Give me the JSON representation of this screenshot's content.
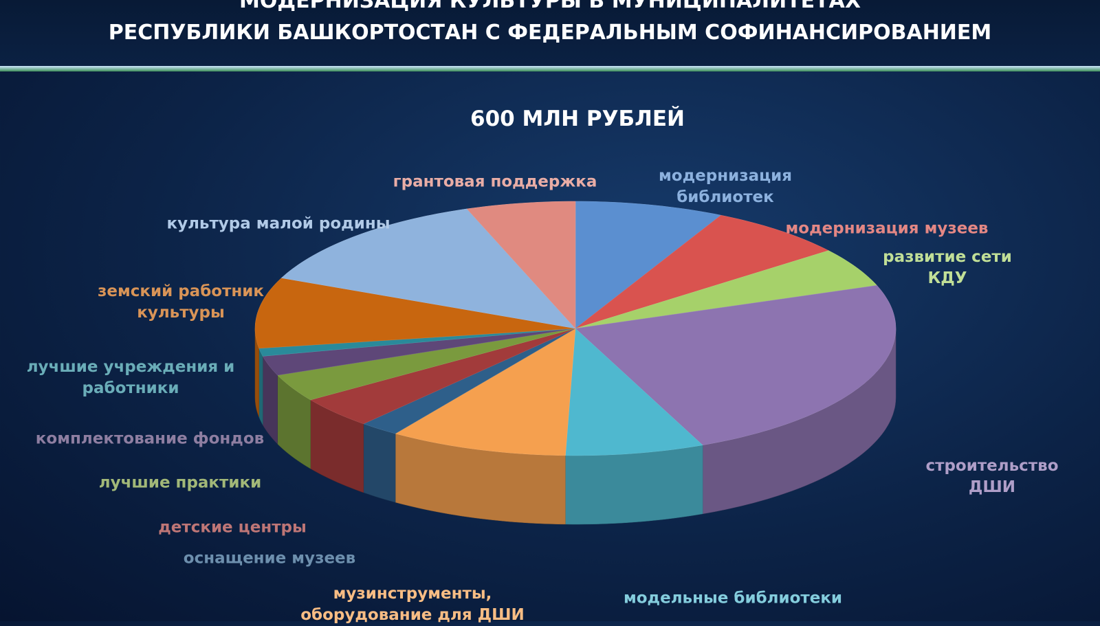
{
  "header": {
    "title_lines": [
      "МОДЕРНИЗАЦИЯ КУЛЬТУРЫ В МУНИЦИПАЛИТЕТАХ",
      "РЕСПУБЛИКИ БАШКОРТОСТАН С ФЕДЕРАЛЬНЫМ СОФИНАНСИРОВАНИЕМ"
    ]
  },
  "chart_data": {
    "type": "pie",
    "title": "600 МЛН РУБЛЕЙ",
    "categories": [
      "модернизация\nбиблиотек",
      "модернизация музеев",
      "развитие сети КДУ",
      "строительство ДШИ",
      "модельные библиотеки",
      "музинструменты,\nоборудование для ДШИ",
      "оснащение музеев",
      "детские центры",
      "лучшие практики",
      "комплектование фондов",
      "лучшие учреждения и\nработники",
      "земский работник\nкультуры",
      "культура малой родины",
      "грантовая поддержка"
    ],
    "values": [
      7.5,
      7,
      5,
      24,
      7,
      9,
      2,
      4,
      3.5,
      2.5,
      1,
      9,
      13,
      5.5
    ],
    "colors": [
      "#5b8fd0",
      "#d9534f",
      "#a6d16a",
      "#8d74b0",
      "#4fb8cf",
      "#f5a04f",
      "#2e5f8a",
      "#a23b3b",
      "#7a9a3e",
      "#5e4778",
      "#2a8a9a",
      "#c8660f",
      "#8fb3dd",
      "#e08a80"
    ]
  }
}
